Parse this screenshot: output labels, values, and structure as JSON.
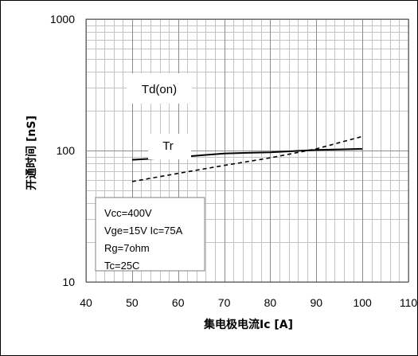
{
  "chart_data": {
    "type": "line",
    "title": "",
    "xlabel": "集电极电流Ic [A]",
    "ylabel": "开通时间 [nS]",
    "xlim": [
      40,
      110
    ],
    "ylim": [
      10,
      1000
    ],
    "y_scale": "log",
    "grid": true,
    "x_ticks": [
      "40",
      "50",
      "60",
      "70",
      "80",
      "90",
      "100",
      "110"
    ],
    "y_ticks": [
      {
        "value": 10,
        "label": "10"
      },
      {
        "value": 100,
        "label": "100"
      },
      {
        "value": 1000,
        "label": "1000"
      }
    ],
    "series": [
      {
        "name": "Td(on)",
        "style": "solid",
        "color": "#000000",
        "x": [
          50,
          55,
          60,
          65,
          70,
          75,
          80,
          85,
          90,
          95,
          100
        ],
        "y": [
          85,
          87,
          89,
          92,
          95,
          96,
          97,
          99,
          101,
          102,
          103
        ]
      },
      {
        "name": "Tr",
        "style": "dashed",
        "color": "#000000",
        "x": [
          50,
          60,
          70,
          80,
          90,
          100
        ],
        "y": [
          58,
          67,
          77,
          88,
          103,
          128
        ]
      }
    ],
    "conditions": [
      "Vcc=400V",
      "Vge=15V Ic=75A",
      "Rg=7ohm",
      "Tc=25C"
    ]
  }
}
